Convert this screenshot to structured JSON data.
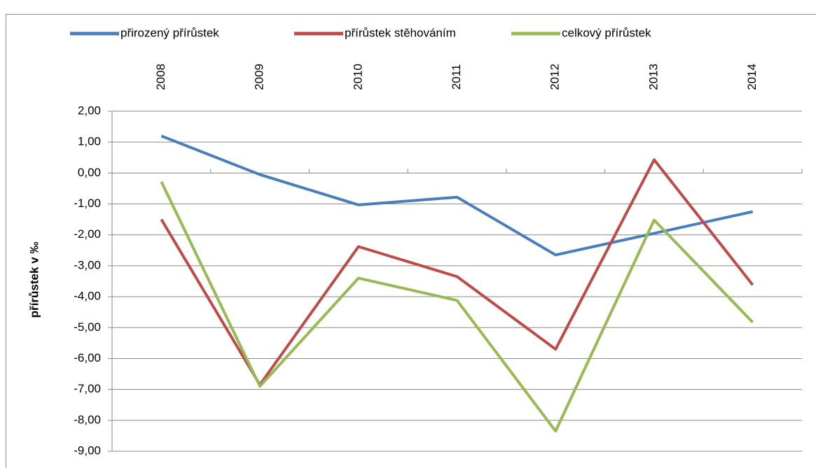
{
  "chart_data": {
    "type": "line",
    "y_label": "přírůstek v ‰",
    "categories": [
      "2008",
      "2009",
      "2010",
      "2011",
      "2012",
      "2013",
      "2014"
    ],
    "series": [
      {
        "name": "přirozený přírůstek",
        "color": "#4a7ebb",
        "values": [
          1.2,
          -0.05,
          -1.03,
          -0.78,
          -2.65,
          -1.95,
          -1.25
        ]
      },
      {
        "name": "přírůstek stěhováním",
        "color": "#be4b48",
        "values": [
          -1.5,
          -6.85,
          -2.38,
          -3.35,
          -5.7,
          0.43,
          -3.62
        ]
      },
      {
        "name": "celkový přírůstek",
        "color": "#98b954",
        "values": [
          -0.28,
          -6.9,
          -3.4,
          -4.12,
          -8.35,
          -1.52,
          -4.83
        ]
      }
    ],
    "ylim": [
      -9,
      2
    ],
    "yticks": [
      {
        "value": 2,
        "label": "2,00"
      },
      {
        "value": 1,
        "label": "1,00"
      },
      {
        "value": 0,
        "label": "0,00"
      },
      {
        "value": -1,
        "label": "-1,00"
      },
      {
        "value": -2,
        "label": "-2,00"
      },
      {
        "value": -3,
        "label": "-3,00"
      },
      {
        "value": -4,
        "label": "-4,00"
      },
      {
        "value": -5,
        "label": "-5,00"
      },
      {
        "value": -6,
        "label": "-6,00"
      },
      {
        "value": -7,
        "label": "-7,00"
      },
      {
        "value": -8,
        "label": "-8,00"
      },
      {
        "value": -9,
        "label": "-9,00"
      }
    ],
    "grid": true,
    "legend": "top"
  }
}
